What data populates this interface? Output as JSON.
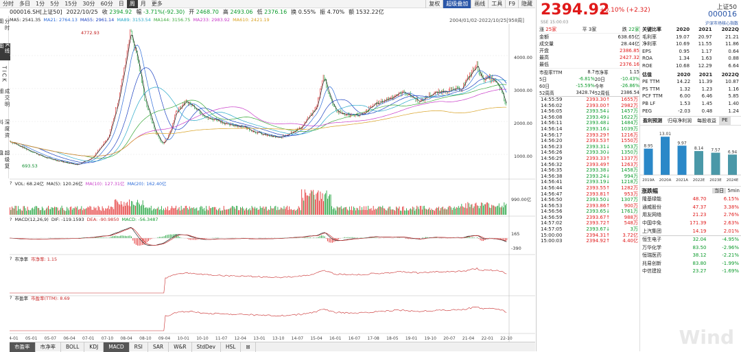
{
  "top_tabs": [
    "分时",
    "多日",
    "1分",
    "5分",
    "15分",
    "30分",
    "60分",
    "日",
    "周",
    "月",
    "更多"
  ],
  "top_tabs_active": "周",
  "top_right_tabs": [
    "复权",
    "超级叠加",
    "画线",
    "工具",
    "F9",
    "隐藏"
  ],
  "top_right_active": "超级叠加",
  "info": {
    "code": "000016.SH[上证50]",
    "date": "2022/10/25",
    "close_label": "收",
    "close": "2394.92",
    "change_label": "幅",
    "change": "-3.71%(-92.30)",
    "open_label": "开",
    "open": "2468.70",
    "high_label": "高",
    "high": "2493.06",
    "low_label": "低",
    "low": "2376.16",
    "turnover_label": "换",
    "turnover": "0.55%",
    "amp_label": "振",
    "amp": "4.70%",
    "amount_label": "额",
    "amount": "1532.22亿"
  },
  "left_tabs": [
    "分时图",
    "K线图",
    "TICK",
    "成交明细",
    "深度资料",
    "超级复盘"
  ],
  "left_tabs_active": "K线图",
  "ma": [
    {
      "label": "MA5",
      "value": "2541.35",
      "color": "#222222"
    },
    {
      "label": "MA21",
      "value": "2764.13",
      "color": "#2a6ad8"
    },
    {
      "label": "MA55",
      "value": "2961.14",
      "color": "#1a40c0"
    },
    {
      "label": "MA89",
      "value": "3153.54",
      "color": "#28a8c8"
    },
    {
      "label": "MA144",
      "value": "3156.75",
      "color": "#3aa83a"
    },
    {
      "label": "MA233",
      "value": "2983.92",
      "color": "#c83ac8"
    },
    {
      "label": "MA610",
      "value": "2421.19",
      "color": "#d8a020"
    }
  ],
  "range_label": "2004/01/02-2022/10/25[958周]",
  "price_high_label": "4772.93",
  "price_low_label": "693.53",
  "price_axis": [
    "4000.00",
    "3000.00",
    "2000.00",
    "1000.00"
  ],
  "vol": {
    "label": "VOL: 68.24亿",
    "ma5": "MA(5): 120.26亿",
    "ma10": "MA(10): 127.31亿",
    "ma20": "MA(20): 162.40亿",
    "axis": "990.00亿"
  },
  "macd": {
    "label": "MACD(12,26,9)",
    "dif": "DIF: -119.1593",
    "dea": "DEA: -90.9850",
    "macd": "MACD: -56.3487",
    "axis_top": "165",
    "axis_bot": "-390"
  },
  "pb": {
    "label": "市净率",
    "value": "市净率: 1.15"
  },
  "pe": {
    "label": "市盈率",
    "value": "市盈率(TTM): 8.69"
  },
  "x_axis": [
    "04-01",
    "05-01",
    "05-07",
    "06-04",
    "07-01",
    "07-10",
    "08-04",
    "08-10",
    "09-04",
    "10-01",
    "10-10",
    "11-07",
    "12-04",
    "13-01",
    "13-10",
    "14-07",
    "15-04",
    "16-01",
    "16-07",
    "17-08",
    "18-05",
    "19-01",
    "19-10",
    "20-07",
    "21-04",
    "22-01",
    "22-10"
  ],
  "bottom_tabs": [
    "市盈率",
    "市净率",
    "BOLL",
    "KDJ",
    "MACD",
    "RSI",
    "SAR",
    "W&R",
    "StdDev",
    "HSL",
    "⊞"
  ],
  "bottom_active": [
    "市盈率",
    "MACD"
  ],
  "quote": {
    "price": "2394.92",
    "change": "+0.10%",
    "change_abs": "(+2.32)",
    "name": "上证50",
    "code": "000016",
    "exchange": "SSE",
    "time": "15:00:03",
    "index_type": "沪深市场核心指数"
  },
  "stats_header": {
    "rise_label": "涨",
    "rise": "25家",
    "flat_label": "平",
    "flat": "3家",
    "fall_label": "跌",
    "fall": "22家"
  },
  "stats": [
    [
      "金额",
      "638.65亿"
    ],
    [
      "成交量",
      "28.44亿"
    ],
    [
      "开盘",
      "2386.85"
    ],
    [
      "最高",
      "2427.32"
    ],
    [
      "最低",
      "2376.16"
    ]
  ],
  "stats2": [
    [
      "市盈率TTM",
      "8.7",
      "市净率",
      "1.15"
    ],
    [
      "5日",
      "-6.81%",
      "20日",
      "-10.43%"
    ],
    [
      "60日",
      "-15.59%",
      "今年",
      "-26.86%"
    ],
    [
      "52周高",
      "3428.74",
      "52周低",
      "2386.54"
    ]
  ],
  "ticks": [
    [
      "14:55:59",
      "2393.30",
      "1655万",
      "r"
    ],
    [
      "14:56:02",
      "2393.00",
      "2982万",
      "r"
    ],
    [
      "14:56:05",
      "2393.54",
      "1457万",
      "g"
    ],
    [
      "14:56:08",
      "2393.49",
      "1622万",
      "g"
    ],
    [
      "14:56:11",
      "2393.48",
      "1484万",
      "g"
    ],
    [
      "14:56:14",
      "2393.16",
      "1039万",
      "g"
    ],
    [
      "14:56:17",
      "2393.29",
      "1216万",
      "r"
    ],
    [
      "14:56:20",
      "2393.53",
      "1550万",
      "r"
    ],
    [
      "14:56:23",
      "2393.31",
      "953万",
      "g"
    ],
    [
      "14:56:26",
      "2393.30",
      "1350万",
      "g"
    ],
    [
      "14:56:29",
      "2393.33",
      "1337万",
      "r"
    ],
    [
      "14:56:32",
      "2393.49",
      "1263万",
      "r"
    ],
    [
      "14:56:35",
      "2393.38",
      "1458万",
      "g"
    ],
    [
      "14:56:38",
      "2393.24",
      "994万",
      "g"
    ],
    [
      "14:56:41",
      "2393.19",
      "1218万",
      "g"
    ],
    [
      "14:56:44",
      "2393.55",
      "1282万",
      "r"
    ],
    [
      "14:56:47",
      "2393.81",
      "953万",
      "r"
    ],
    [
      "14:56:50",
      "2393.50",
      "1307万",
      "g"
    ],
    [
      "14:56:53",
      "2393.86",
      "900万",
      "r"
    ],
    [
      "14:56:56",
      "2393.65",
      "1761万",
      "g"
    ],
    [
      "14:56:59",
      "2393.67",
      "988万",
      "r"
    ],
    [
      "14:57:02",
      "2393.72",
      "548万",
      "r"
    ],
    [
      "14:57:05",
      "2393.67",
      "3万",
      "g"
    ],
    [
      "15:00:00",
      "2394.31",
      "3.72亿",
      "r"
    ],
    [
      "15:00:03",
      "2394.92",
      "4.40亿",
      "r"
    ]
  ],
  "ratios": {
    "title": "关键比率",
    "years": [
      "2020",
      "2021",
      "2022Q"
    ],
    "rows": [
      [
        "毛利率",
        "19.07",
        "20.97",
        "21.21"
      ],
      [
        "净利率",
        "10.69",
        "11.55",
        "11.86"
      ],
      [
        "EPS",
        "0.95",
        "1.17",
        "0.64"
      ],
      [
        "ROA",
        "1.34",
        "1.63",
        "0.88"
      ],
      [
        "ROE",
        "10.68",
        "12.29",
        "6.64"
      ]
    ]
  },
  "valuation": {
    "title": "估值",
    "years": [
      "2020",
      "2021",
      "2022Q"
    ],
    "rows": [
      [
        "PE TTM",
        "14.22",
        "11.39",
        "10.87"
      ],
      [
        "PS TTM",
        "1.32",
        "1.23",
        "1.16"
      ],
      [
        "PCF TTM",
        "6.00",
        "6.46",
        "5.85"
      ],
      [
        "PB LF",
        "1.53",
        "1.45",
        "1.40"
      ],
      [
        "PEG",
        "-2.03",
        "0.48",
        "1.24"
      ]
    ]
  },
  "forecast_tabs": [
    "盈利预测",
    "归母净利润",
    "每股收益",
    "PE"
  ],
  "forecast": {
    "categories": [
      "2019A",
      "2020A",
      "2021A",
      "2022E",
      "2023E",
      "2024E"
    ],
    "values": [
      8.95,
      13.01,
      9.97,
      8.14,
      7.57,
      6.94
    ],
    "labels": [
      "8.95",
      "13.01",
      "9.97",
      "8.14",
      "7.57",
      "6.94"
    ]
  },
  "sector": {
    "title": "涨跌幅",
    "tab_today": "当日",
    "tab_5min": "5min",
    "up": [
      [
        "隆基绿能",
        "48.70",
        "6.15%"
      ],
      [
        "通威股份",
        "47.37",
        "3.38%"
      ],
      [
        "用友网络",
        "21.23",
        "2.76%"
      ],
      [
        "中国中免",
        "171.39",
        "2.63%"
      ],
      [
        "上汽集团",
        "14.19",
        "2.01%"
      ]
    ],
    "down": [
      [
        "恒生电子",
        "32.04",
        "-4.95%"
      ],
      [
        "万华化学",
        "83.50",
        "-2.96%"
      ],
      [
        "恒瑞医药",
        "38.12",
        "-2.21%"
      ],
      [
        "兆易创新",
        "83.80",
        "-1.99%"
      ],
      [
        "中信建投",
        "23.27",
        "-1.69%"
      ]
    ]
  },
  "watermark": "Wind"
}
